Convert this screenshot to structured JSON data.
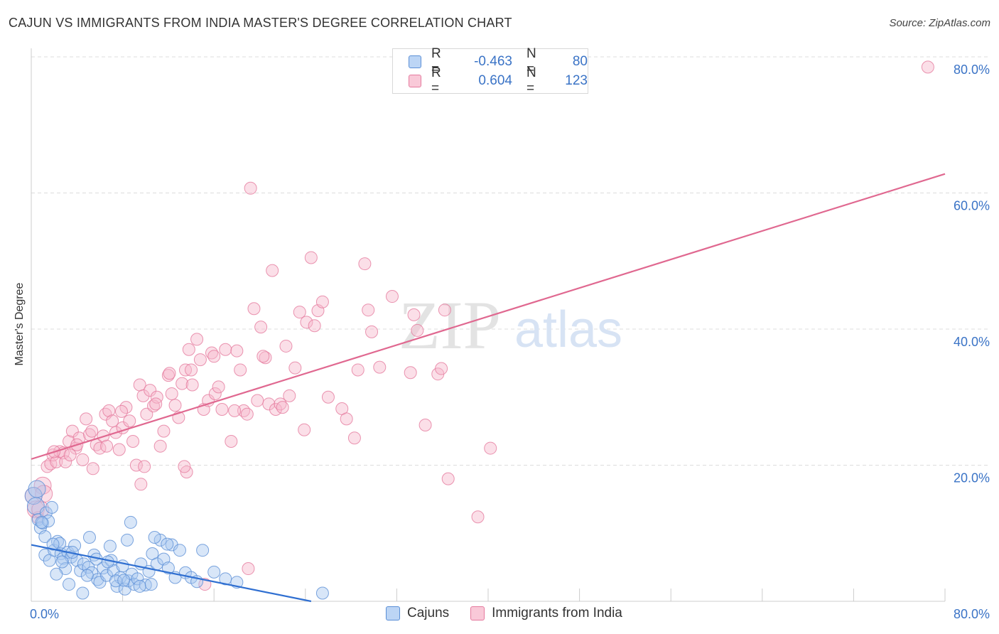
{
  "header": {
    "title": "CAJUN VS IMMIGRANTS FROM INDIA MASTER'S DEGREE CORRELATION CHART",
    "source": "Source: ZipAtlas.com"
  },
  "watermark": {
    "zip": "ZIP",
    "atlas": "atlas"
  },
  "legend": {
    "r_label": "R =",
    "n_label": "N =",
    "rows": [
      {
        "series": "Cajuns",
        "r": "-0.463",
        "n": "80"
      },
      {
        "series": "Immigrants from India",
        "r": "0.604",
        "n": "123"
      }
    ]
  },
  "colors": {
    "blue_fill": "#a9c8f0",
    "blue_stroke": "#5b8fd6",
    "blue_line": "#2f6fd1",
    "pink_fill": "#f7b9cc",
    "pink_stroke": "#e57a9e",
    "pink_line": "#e06890",
    "axis_text": "#3a73c6",
    "grid": "#dddddd"
  },
  "chart_data": {
    "type": "scatter",
    "title": "CAJUN VS IMMIGRANTS FROM INDIA MASTER'S DEGREE CORRELATION CHART",
    "xlabel": "",
    "ylabel": "Master's Degree",
    "xlim": [
      0,
      80
    ],
    "ylim": [
      0,
      80
    ],
    "x_tick_labels": [
      "0.0%",
      "80.0%"
    ],
    "y_ticks": [
      20,
      40,
      60,
      80
    ],
    "y_tick_labels": [
      "20.0%",
      "40.0%",
      "60.0%",
      "80.0%"
    ],
    "legend_position": "top-center",
    "series": [
      {
        "name": "Cajuns",
        "r": -0.463,
        "n": 80,
        "trend": {
          "x": [
            0,
            24.5
          ],
          "y": [
            8.3,
            0
          ]
        },
        "points": [
          [
            0.2,
            15.5
          ],
          [
            0.4,
            14.0
          ],
          [
            0.6,
            12.0
          ],
          [
            0.8,
            10.8
          ],
          [
            1.0,
            11.5
          ],
          [
            1.2,
            9.5
          ],
          [
            1.3,
            13.0
          ],
          [
            1.5,
            11.8
          ],
          [
            1.8,
            13.8
          ],
          [
            0.5,
            16.5
          ],
          [
            1.2,
            6.8
          ],
          [
            1.6,
            6.0
          ],
          [
            2.0,
            7.5
          ],
          [
            2.3,
            8.8
          ],
          [
            2.6,
            7.0
          ],
          [
            2.8,
            6.3
          ],
          [
            3.0,
            4.8
          ],
          [
            3.2,
            7.2
          ],
          [
            3.5,
            6.5
          ],
          [
            3.8,
            8.2
          ],
          [
            2.5,
            8.5
          ],
          [
            4.0,
            6.0
          ],
          [
            4.3,
            4.5
          ],
          [
            4.6,
            5.5
          ],
          [
            5.0,
            5.0
          ],
          [
            5.3,
            4.2
          ],
          [
            5.5,
            6.8
          ],
          [
            5.8,
            3.2
          ],
          [
            6.0,
            2.8
          ],
          [
            6.3,
            4.9
          ],
          [
            6.6,
            3.8
          ],
          [
            7.0,
            6.0
          ],
          [
            7.2,
            4.5
          ],
          [
            7.5,
            2.2
          ],
          [
            7.8,
            3.5
          ],
          [
            8.0,
            5.2
          ],
          [
            8.2,
            1.8
          ],
          [
            8.5,
            3.0
          ],
          [
            8.8,
            4.0
          ],
          [
            9.0,
            2.5
          ],
          [
            9.3,
            3.3
          ],
          [
            9.6,
            5.5
          ],
          [
            10.0,
            2.4
          ],
          [
            10.3,
            4.4
          ],
          [
            10.6,
            7.0
          ],
          [
            11.0,
            5.5
          ],
          [
            11.3,
            9.0
          ],
          [
            11.6,
            6.2
          ],
          [
            12.0,
            4.9
          ],
          [
            12.3,
            8.3
          ],
          [
            12.6,
            3.5
          ],
          [
            13.0,
            7.5
          ],
          [
            13.5,
            4.2
          ],
          [
            14.0,
            3.5
          ],
          [
            14.5,
            2.9
          ],
          [
            15.0,
            7.5
          ],
          [
            16.0,
            4.3
          ],
          [
            17.0,
            3.3
          ],
          [
            18.0,
            2.8
          ],
          [
            2.2,
            4.0
          ],
          [
            3.3,
            2.5
          ],
          [
            4.5,
            1.2
          ],
          [
            5.1,
            9.4
          ],
          [
            6.9,
            8.1
          ],
          [
            8.4,
            9.0
          ],
          [
            8.7,
            11.6
          ],
          [
            10.8,
            9.4
          ],
          [
            11.9,
            8.4
          ],
          [
            9.5,
            2.2
          ],
          [
            25.5,
            1.2
          ],
          [
            1.9,
            8.4
          ],
          [
            3.6,
            7.2
          ],
          [
            4.9,
            3.8
          ],
          [
            6.7,
            5.8
          ],
          [
            7.4,
            3.0
          ],
          [
            10.5,
            2.5
          ],
          [
            0.9,
            11.6
          ],
          [
            2.7,
            5.8
          ],
          [
            5.7,
            6.2
          ],
          [
            8.1,
            3.1
          ]
        ]
      },
      {
        "name": "Immigrants from India",
        "r": 0.604,
        "n": 123,
        "trend": {
          "x": [
            0,
            80
          ],
          "y": [
            20.9,
            62.8
          ]
        },
        "points": [
          [
            0.2,
            15.5
          ],
          [
            0.4,
            13.5
          ],
          [
            0.6,
            12.3
          ],
          [
            1.0,
            17.0
          ],
          [
            1.4,
            19.8
          ],
          [
            1.7,
            20.2
          ],
          [
            1.9,
            21.5
          ],
          [
            2.2,
            20.5
          ],
          [
            2.5,
            22.0
          ],
          [
            2.8,
            21.8
          ],
          [
            3.0,
            20.5
          ],
          [
            3.3,
            23.5
          ],
          [
            3.6,
            25.0
          ],
          [
            3.9,
            22.5
          ],
          [
            4.2,
            24.0
          ],
          [
            4.5,
            20.8
          ],
          [
            4.8,
            26.8
          ],
          [
            5.1,
            24.5
          ],
          [
            5.4,
            19.5
          ],
          [
            5.7,
            23.0
          ],
          [
            6.0,
            22.5
          ],
          [
            6.3,
            24.3
          ],
          [
            6.5,
            27.5
          ],
          [
            6.8,
            28.0
          ],
          [
            7.1,
            26.5
          ],
          [
            7.4,
            24.8
          ],
          [
            7.7,
            22.3
          ],
          [
            8.0,
            25.5
          ],
          [
            8.3,
            28.5
          ],
          [
            8.6,
            26.5
          ],
          [
            8.9,
            23.5
          ],
          [
            9.2,
            20.0
          ],
          [
            9.5,
            31.8
          ],
          [
            9.8,
            30.2
          ],
          [
            10.1,
            27.5
          ],
          [
            10.4,
            31.0
          ],
          [
            10.7,
            28.7
          ],
          [
            11.0,
            30.0
          ],
          [
            11.3,
            22.8
          ],
          [
            11.6,
            25.0
          ],
          [
            12.0,
            33.2
          ],
          [
            12.3,
            30.5
          ],
          [
            12.6,
            28.8
          ],
          [
            12.9,
            27.0
          ],
          [
            13.2,
            32.0
          ],
          [
            13.5,
            34.0
          ],
          [
            13.8,
            37.0
          ],
          [
            14.1,
            31.8
          ],
          [
            14.5,
            38.5
          ],
          [
            14.8,
            35.5
          ],
          [
            15.1,
            28.2
          ],
          [
            15.5,
            29.5
          ],
          [
            15.8,
            36.5
          ],
          [
            16.1,
            30.5
          ],
          [
            16.4,
            31.5
          ],
          [
            16.7,
            28.2
          ],
          [
            17.0,
            37.0
          ],
          [
            17.5,
            23.5
          ],
          [
            18.0,
            36.8
          ],
          [
            18.3,
            34.0
          ],
          [
            18.6,
            28.0
          ],
          [
            18.9,
            27.5
          ],
          [
            19.2,
            60.7
          ],
          [
            19.5,
            43.0
          ],
          [
            19.8,
            29.5
          ],
          [
            20.1,
            40.3
          ],
          [
            20.5,
            35.8
          ],
          [
            20.8,
            29.0
          ],
          [
            21.1,
            48.6
          ],
          [
            21.4,
            28.2
          ],
          [
            21.8,
            29.0
          ],
          [
            22.3,
            37.5
          ],
          [
            22.6,
            30.2
          ],
          [
            23.1,
            34.3
          ],
          [
            23.5,
            42.5
          ],
          [
            23.9,
            25.2
          ],
          [
            24.1,
            41.0
          ],
          [
            24.5,
            50.5
          ],
          [
            24.8,
            40.5
          ],
          [
            25.1,
            42.7
          ],
          [
            27.2,
            28.3
          ],
          [
            27.6,
            26.8
          ],
          [
            28.3,
            24.0
          ],
          [
            28.6,
            34.0
          ],
          [
            29.2,
            49.6
          ],
          [
            29.5,
            42.8
          ],
          [
            29.8,
            39.6
          ],
          [
            30.5,
            34.4
          ],
          [
            31.6,
            44.8
          ],
          [
            33.2,
            33.6
          ],
          [
            33.5,
            42.1
          ],
          [
            33.8,
            39.8
          ],
          [
            34.5,
            25.9
          ],
          [
            35.6,
            33.4
          ],
          [
            35.9,
            34.2
          ],
          [
            36.2,
            42.8
          ],
          [
            36.5,
            18.0
          ],
          [
            39.1,
            12.4
          ],
          [
            40.2,
            22.5
          ],
          [
            9.6,
            17.2
          ],
          [
            13.6,
            19.0
          ],
          [
            13.4,
            19.8
          ],
          [
            15.2,
            2.5
          ],
          [
            19.0,
            4.8
          ],
          [
            78.5,
            78.5
          ],
          [
            0.8,
            13.5
          ],
          [
            1.1,
            15.8
          ],
          [
            2.0,
            22.0
          ],
          [
            3.4,
            21.5
          ],
          [
            4.0,
            23.0
          ],
          [
            5.3,
            25.0
          ],
          [
            6.6,
            22.8
          ],
          [
            7.9,
            27.9
          ],
          [
            9.9,
            19.8
          ],
          [
            10.9,
            29.0
          ],
          [
            12.1,
            33.5
          ],
          [
            14.0,
            34.0
          ],
          [
            16.0,
            36.0
          ],
          [
            17.8,
            28.0
          ],
          [
            20.3,
            36.0
          ],
          [
            22.0,
            28.5
          ],
          [
            25.5,
            44.0
          ],
          [
            26.0,
            30.0
          ]
        ]
      }
    ]
  }
}
